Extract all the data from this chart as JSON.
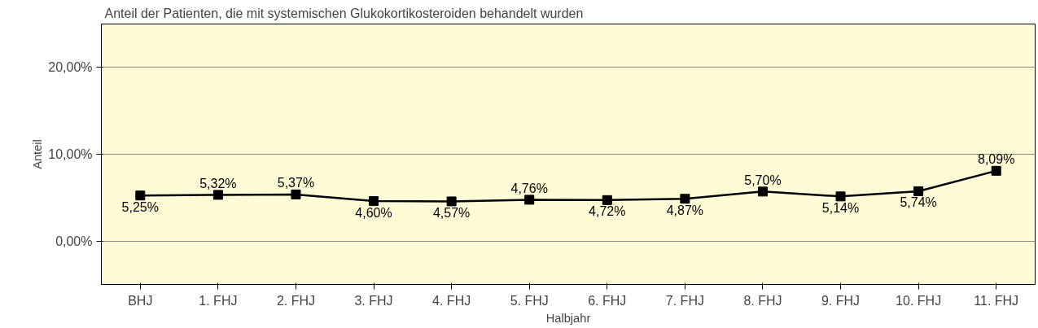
{
  "chart_data": {
    "type": "line",
    "title": "Anteil der Patienten, die mit systemischen Glukokortikosteroiden behandelt wurden",
    "xlabel": "Halbjahr",
    "ylabel": "Anteil",
    "categories": [
      "BHJ",
      "1. FHJ",
      "2. FHJ",
      "3. FHJ",
      "4. FHJ",
      "5. FHJ",
      "6. FHJ",
      "7. FHJ",
      "8. FHJ",
      "9. FHJ",
      "10. FHJ",
      "11. FHJ"
    ],
    "series": [
      {
        "color": "#000000",
        "values": [
          5.25,
          5.32,
          5.37,
          4.6,
          4.57,
          4.76,
          4.72,
          4.87,
          5.7,
          5.14,
          5.74,
          8.09
        ],
        "value_labels": [
          "5,25%",
          "5,32%",
          "5,37%",
          "4,60%",
          "4,57%",
          "4,76%",
          "4,72%",
          "4,87%",
          "5,70%",
          "5,14%",
          "5,74%",
          "8,09%"
        ]
      }
    ],
    "ylim": [
      -5,
      25
    ],
    "yticks": [
      {
        "value": 0,
        "label": "0,00%"
      },
      {
        "value": 10,
        "label": "10,00%"
      },
      {
        "value": 20,
        "label": "20,00%"
      }
    ],
    "grid": "y",
    "marker": "square",
    "line_style": "solid"
  }
}
